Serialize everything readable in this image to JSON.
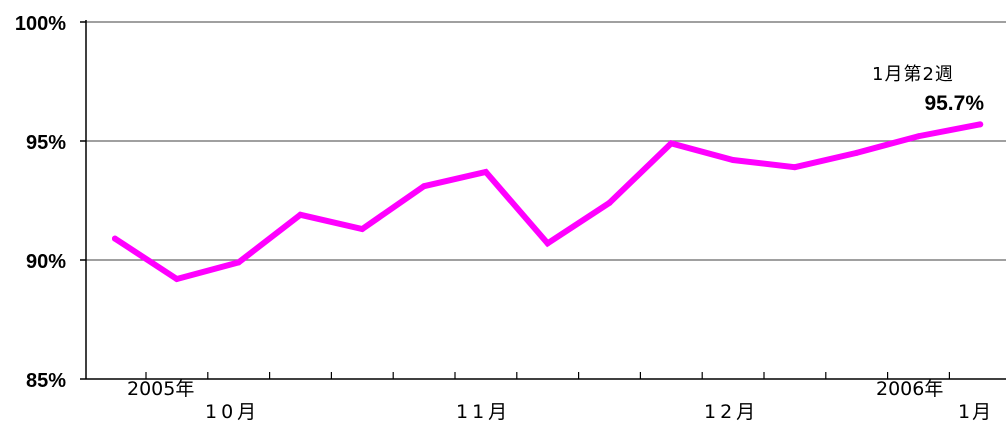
{
  "chart_data": {
    "type": "line",
    "title": "",
    "xlabel": "",
    "ylabel": "",
    "ylim": [
      85,
      100
    ],
    "y_ticks": [
      "100%",
      "95%",
      "90%",
      "85%"
    ],
    "y_tick_values": [
      100,
      95,
      90,
      85
    ],
    "x_labels": [
      "10月",
      "11月",
      "12月",
      "1月"
    ],
    "year_labels": [
      "2005年",
      "2006年"
    ],
    "grid": "horizontal",
    "line_color": "#ff00ff",
    "series": [
      {
        "values": [
          90.9,
          89.2,
          89.9,
          91.9,
          91.3,
          93.1,
          93.7,
          90.7,
          92.4,
          94.9,
          94.2,
          93.9,
          94.5,
          95.2,
          95.7
        ]
      }
    ],
    "annotation": {
      "label": "1月第2週",
      "value_text": "95.7%"
    }
  }
}
